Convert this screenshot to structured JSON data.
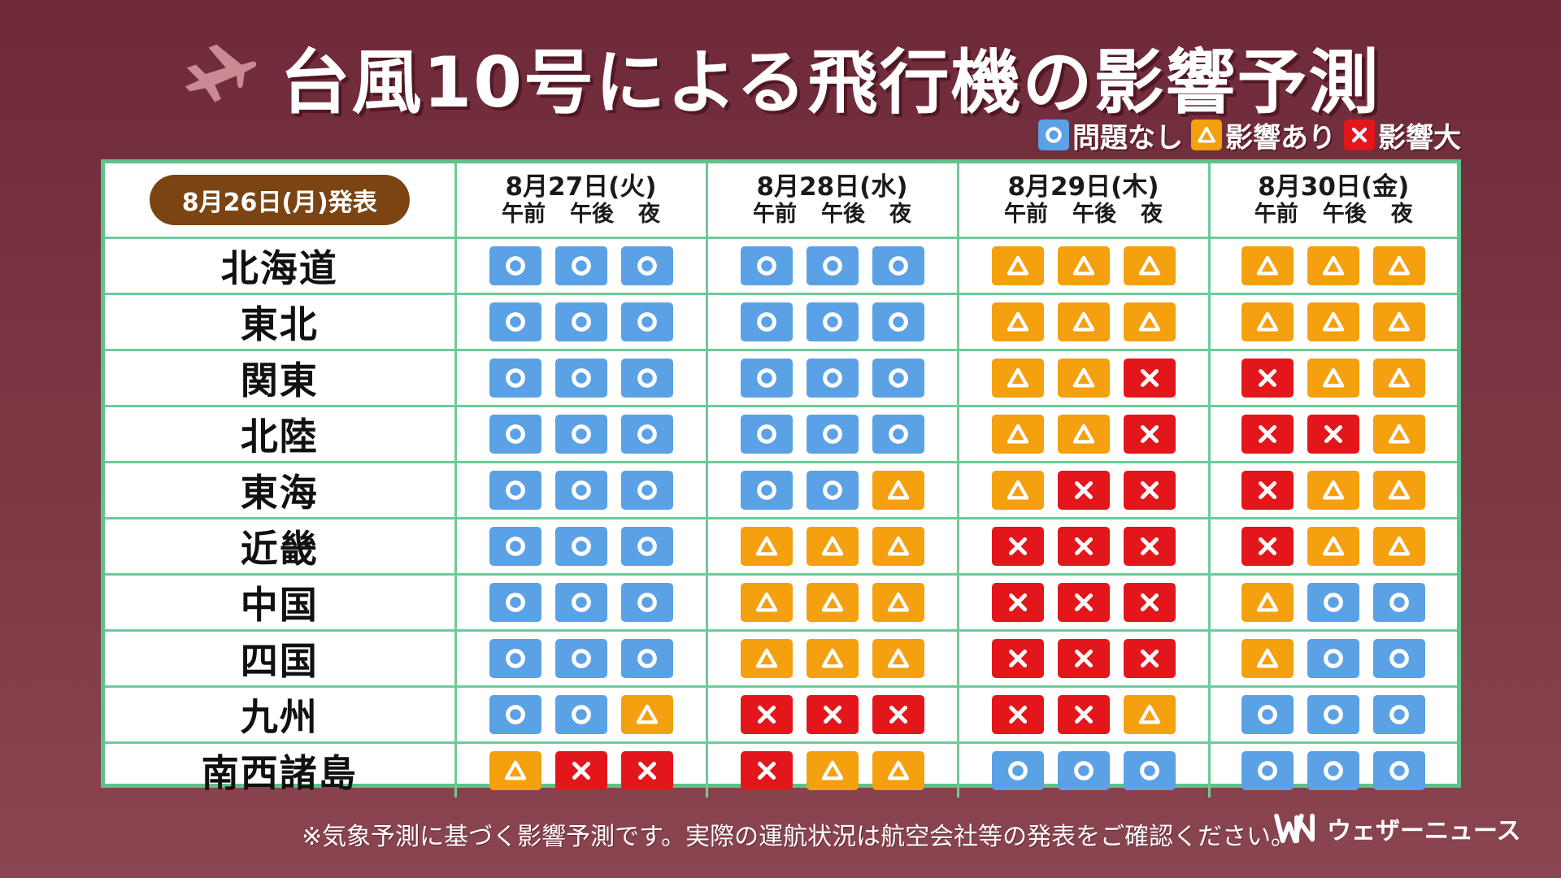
{
  "title": "台風10号による飛行機の影響予測",
  "legend": [
    {
      "status": "ok",
      "label": "問題なし",
      "icon": "circle-icon"
    },
    {
      "status": "warn",
      "label": "影響あり",
      "icon": "triangle-icon"
    },
    {
      "status": "bad",
      "label": "影響大",
      "icon": "cross-icon"
    }
  ],
  "colors": {
    "ok": "#5ba1e6",
    "warn": "#f5a00f",
    "bad": "#e3161b",
    "border": "#5cc48a",
    "background": "#7a3342"
  },
  "issued": "8月26日(月)発表",
  "periods": [
    "午前",
    "午後",
    "夜"
  ],
  "days": [
    "8月27日(火)",
    "8月28日(水)",
    "8月29日(木)",
    "8月30日(金)"
  ],
  "rows": [
    {
      "region": "北海道",
      "days": [
        [
          "ok",
          "ok",
          "ok"
        ],
        [
          "ok",
          "ok",
          "ok"
        ],
        [
          "warn",
          "warn",
          "warn"
        ],
        [
          "warn",
          "warn",
          "warn"
        ]
      ]
    },
    {
      "region": "東北",
      "days": [
        [
          "ok",
          "ok",
          "ok"
        ],
        [
          "ok",
          "ok",
          "ok"
        ],
        [
          "warn",
          "warn",
          "warn"
        ],
        [
          "warn",
          "warn",
          "warn"
        ]
      ]
    },
    {
      "region": "関東",
      "days": [
        [
          "ok",
          "ok",
          "ok"
        ],
        [
          "ok",
          "ok",
          "ok"
        ],
        [
          "warn",
          "warn",
          "bad"
        ],
        [
          "bad",
          "warn",
          "warn"
        ]
      ]
    },
    {
      "region": "北陸",
      "days": [
        [
          "ok",
          "ok",
          "ok"
        ],
        [
          "ok",
          "ok",
          "ok"
        ],
        [
          "warn",
          "warn",
          "bad"
        ],
        [
          "bad",
          "bad",
          "warn"
        ]
      ]
    },
    {
      "region": "東海",
      "days": [
        [
          "ok",
          "ok",
          "ok"
        ],
        [
          "ok",
          "ok",
          "warn"
        ],
        [
          "warn",
          "bad",
          "bad"
        ],
        [
          "bad",
          "warn",
          "warn"
        ]
      ]
    },
    {
      "region": "近畿",
      "days": [
        [
          "ok",
          "ok",
          "ok"
        ],
        [
          "warn",
          "warn",
          "warn"
        ],
        [
          "bad",
          "bad",
          "bad"
        ],
        [
          "bad",
          "warn",
          "warn"
        ]
      ]
    },
    {
      "region": "中国",
      "days": [
        [
          "ok",
          "ok",
          "ok"
        ],
        [
          "warn",
          "warn",
          "warn"
        ],
        [
          "bad",
          "bad",
          "bad"
        ],
        [
          "warn",
          "ok",
          "ok"
        ]
      ]
    },
    {
      "region": "四国",
      "days": [
        [
          "ok",
          "ok",
          "ok"
        ],
        [
          "warn",
          "warn",
          "warn"
        ],
        [
          "bad",
          "bad",
          "bad"
        ],
        [
          "warn",
          "ok",
          "ok"
        ]
      ]
    },
    {
      "region": "九州",
      "days": [
        [
          "ok",
          "ok",
          "warn"
        ],
        [
          "bad",
          "bad",
          "bad"
        ],
        [
          "bad",
          "bad",
          "warn"
        ],
        [
          "ok",
          "ok",
          "ok"
        ]
      ]
    },
    {
      "region": "南西諸島",
      "days": [
        [
          "warn",
          "bad",
          "bad"
        ],
        [
          "bad",
          "warn",
          "warn"
        ],
        [
          "ok",
          "ok",
          "ok"
        ],
        [
          "ok",
          "ok",
          "ok"
        ]
      ]
    }
  ],
  "footnote": "※気象予測に基づく影響予測です。実際の運航状況は航空会社等の発表をご確認ください。",
  "brand": "ウェザーニュース",
  "brand_logo_icon": "weathernews-logo-icon"
}
